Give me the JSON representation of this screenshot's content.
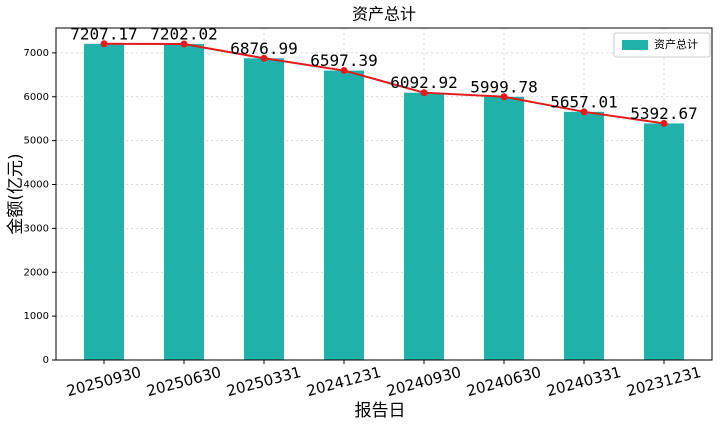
{
  "chart_data": {
    "type": "bar_line",
    "title": "资产总计",
    "x_label": "报告日",
    "y_label": "金额(亿元)",
    "categories": [
      "20250930",
      "20250630",
      "20250331",
      "20241231",
      "20240930",
      "20240630",
      "20240331",
      "20231231"
    ],
    "series": [
      {
        "name": "资产总计",
        "color": "#20b2aa",
        "line_color": "#e31a1c",
        "values": [
          7207.17,
          7202.02,
          6876.99,
          6597.39,
          6092.92,
          5999.78,
          5657.01,
          5392.67
        ]
      }
    ],
    "ylim": [
      0,
      7567.5
    ],
    "yticks": [
      0,
      1000,
      2000,
      3000,
      4000,
      5000,
      6000,
      7000
    ],
    "grid": true,
    "legend": "upper right"
  }
}
